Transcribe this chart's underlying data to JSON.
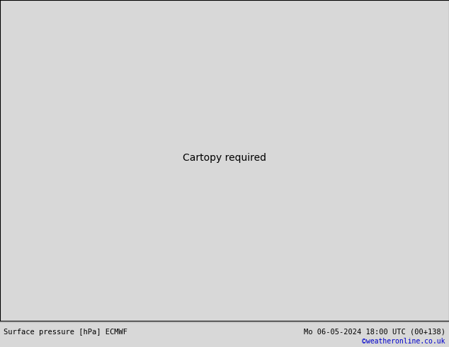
{
  "title_left": "Surface pressure [hPa] ECMWF",
  "title_right": "Mo 06-05-2024 18:00 UTC (00+138)",
  "copyright": "©weatheronline.co.uk",
  "bg_color": "#d8d8d8",
  "land_color": "#c8f0a0",
  "ocean_color": "#d8d8d8",
  "coast_color": "#888888",
  "footer_bg": "#f0f0f0",
  "fig_width": 6.34,
  "fig_height": 4.9,
  "map_extent": [
    105,
    185,
    -57,
    12
  ],
  "contour_color_red": "#cc0000",
  "contour_color_black": "#000000",
  "contour_color_blue": "#0000cc",
  "label_fontsize": 6.5,
  "footer_fontsize": 7.5
}
